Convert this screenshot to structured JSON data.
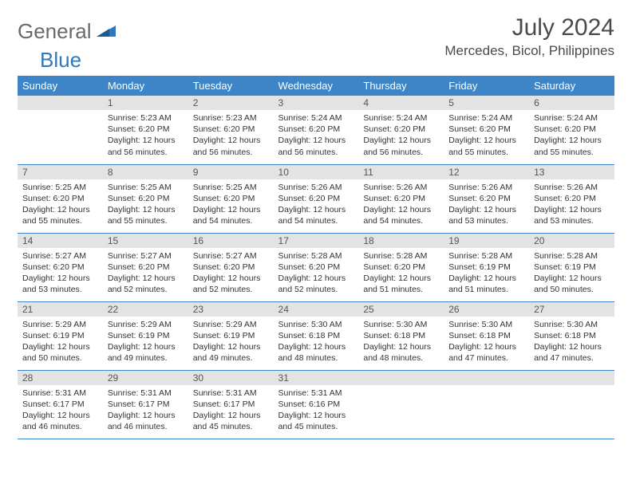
{
  "brand": {
    "word1": "General",
    "word2": "Blue"
  },
  "title": "July 2024",
  "location": "Mercedes, Bicol, Philippines",
  "colors": {
    "header_bg": "#3d85c6",
    "header_text": "#ffffff",
    "daynum_bg": "#e3e3e3",
    "border": "#3d85c6",
    "logo_gray": "#6a6a6a",
    "logo_blue": "#2d78bf",
    "body_text": "#333333"
  },
  "typography": {
    "title_fontsize": 30,
    "location_fontsize": 17,
    "header_fontsize": 13,
    "cell_fontsize": 10.5
  },
  "day_labels": [
    "Sunday",
    "Monday",
    "Tuesday",
    "Wednesday",
    "Thursday",
    "Friday",
    "Saturday"
  ],
  "weeks": [
    [
      {
        "n": "",
        "sunrise": "",
        "sunset": "",
        "daylight": ""
      },
      {
        "n": "1",
        "sunrise": "Sunrise: 5:23 AM",
        "sunset": "Sunset: 6:20 PM",
        "daylight": "Daylight: 12 hours and 56 minutes."
      },
      {
        "n": "2",
        "sunrise": "Sunrise: 5:23 AM",
        "sunset": "Sunset: 6:20 PM",
        "daylight": "Daylight: 12 hours and 56 minutes."
      },
      {
        "n": "3",
        "sunrise": "Sunrise: 5:24 AM",
        "sunset": "Sunset: 6:20 PM",
        "daylight": "Daylight: 12 hours and 56 minutes."
      },
      {
        "n": "4",
        "sunrise": "Sunrise: 5:24 AM",
        "sunset": "Sunset: 6:20 PM",
        "daylight": "Daylight: 12 hours and 56 minutes."
      },
      {
        "n": "5",
        "sunrise": "Sunrise: 5:24 AM",
        "sunset": "Sunset: 6:20 PM",
        "daylight": "Daylight: 12 hours and 55 minutes."
      },
      {
        "n": "6",
        "sunrise": "Sunrise: 5:24 AM",
        "sunset": "Sunset: 6:20 PM",
        "daylight": "Daylight: 12 hours and 55 minutes."
      }
    ],
    [
      {
        "n": "7",
        "sunrise": "Sunrise: 5:25 AM",
        "sunset": "Sunset: 6:20 PM",
        "daylight": "Daylight: 12 hours and 55 minutes."
      },
      {
        "n": "8",
        "sunrise": "Sunrise: 5:25 AM",
        "sunset": "Sunset: 6:20 PM",
        "daylight": "Daylight: 12 hours and 55 minutes."
      },
      {
        "n": "9",
        "sunrise": "Sunrise: 5:25 AM",
        "sunset": "Sunset: 6:20 PM",
        "daylight": "Daylight: 12 hours and 54 minutes."
      },
      {
        "n": "10",
        "sunrise": "Sunrise: 5:26 AM",
        "sunset": "Sunset: 6:20 PM",
        "daylight": "Daylight: 12 hours and 54 minutes."
      },
      {
        "n": "11",
        "sunrise": "Sunrise: 5:26 AM",
        "sunset": "Sunset: 6:20 PM",
        "daylight": "Daylight: 12 hours and 54 minutes."
      },
      {
        "n": "12",
        "sunrise": "Sunrise: 5:26 AM",
        "sunset": "Sunset: 6:20 PM",
        "daylight": "Daylight: 12 hours and 53 minutes."
      },
      {
        "n": "13",
        "sunrise": "Sunrise: 5:26 AM",
        "sunset": "Sunset: 6:20 PM",
        "daylight": "Daylight: 12 hours and 53 minutes."
      }
    ],
    [
      {
        "n": "14",
        "sunrise": "Sunrise: 5:27 AM",
        "sunset": "Sunset: 6:20 PM",
        "daylight": "Daylight: 12 hours and 53 minutes."
      },
      {
        "n": "15",
        "sunrise": "Sunrise: 5:27 AM",
        "sunset": "Sunset: 6:20 PM",
        "daylight": "Daylight: 12 hours and 52 minutes."
      },
      {
        "n": "16",
        "sunrise": "Sunrise: 5:27 AM",
        "sunset": "Sunset: 6:20 PM",
        "daylight": "Daylight: 12 hours and 52 minutes."
      },
      {
        "n": "17",
        "sunrise": "Sunrise: 5:28 AM",
        "sunset": "Sunset: 6:20 PM",
        "daylight": "Daylight: 12 hours and 52 minutes."
      },
      {
        "n": "18",
        "sunrise": "Sunrise: 5:28 AM",
        "sunset": "Sunset: 6:20 PM",
        "daylight": "Daylight: 12 hours and 51 minutes."
      },
      {
        "n": "19",
        "sunrise": "Sunrise: 5:28 AM",
        "sunset": "Sunset: 6:19 PM",
        "daylight": "Daylight: 12 hours and 51 minutes."
      },
      {
        "n": "20",
        "sunrise": "Sunrise: 5:28 AM",
        "sunset": "Sunset: 6:19 PM",
        "daylight": "Daylight: 12 hours and 50 minutes."
      }
    ],
    [
      {
        "n": "21",
        "sunrise": "Sunrise: 5:29 AM",
        "sunset": "Sunset: 6:19 PM",
        "daylight": "Daylight: 12 hours and 50 minutes."
      },
      {
        "n": "22",
        "sunrise": "Sunrise: 5:29 AM",
        "sunset": "Sunset: 6:19 PM",
        "daylight": "Daylight: 12 hours and 49 minutes."
      },
      {
        "n": "23",
        "sunrise": "Sunrise: 5:29 AM",
        "sunset": "Sunset: 6:19 PM",
        "daylight": "Daylight: 12 hours and 49 minutes."
      },
      {
        "n": "24",
        "sunrise": "Sunrise: 5:30 AM",
        "sunset": "Sunset: 6:18 PM",
        "daylight": "Daylight: 12 hours and 48 minutes."
      },
      {
        "n": "25",
        "sunrise": "Sunrise: 5:30 AM",
        "sunset": "Sunset: 6:18 PM",
        "daylight": "Daylight: 12 hours and 48 minutes."
      },
      {
        "n": "26",
        "sunrise": "Sunrise: 5:30 AM",
        "sunset": "Sunset: 6:18 PM",
        "daylight": "Daylight: 12 hours and 47 minutes."
      },
      {
        "n": "27",
        "sunrise": "Sunrise: 5:30 AM",
        "sunset": "Sunset: 6:18 PM",
        "daylight": "Daylight: 12 hours and 47 minutes."
      }
    ],
    [
      {
        "n": "28",
        "sunrise": "Sunrise: 5:31 AM",
        "sunset": "Sunset: 6:17 PM",
        "daylight": "Daylight: 12 hours and 46 minutes."
      },
      {
        "n": "29",
        "sunrise": "Sunrise: 5:31 AM",
        "sunset": "Sunset: 6:17 PM",
        "daylight": "Daylight: 12 hours and 46 minutes."
      },
      {
        "n": "30",
        "sunrise": "Sunrise: 5:31 AM",
        "sunset": "Sunset: 6:17 PM",
        "daylight": "Daylight: 12 hours and 45 minutes."
      },
      {
        "n": "31",
        "sunrise": "Sunrise: 5:31 AM",
        "sunset": "Sunset: 6:16 PM",
        "daylight": "Daylight: 12 hours and 45 minutes."
      },
      {
        "n": "",
        "sunrise": "",
        "sunset": "",
        "daylight": ""
      },
      {
        "n": "",
        "sunrise": "",
        "sunset": "",
        "daylight": ""
      },
      {
        "n": "",
        "sunrise": "",
        "sunset": "",
        "daylight": ""
      }
    ]
  ]
}
